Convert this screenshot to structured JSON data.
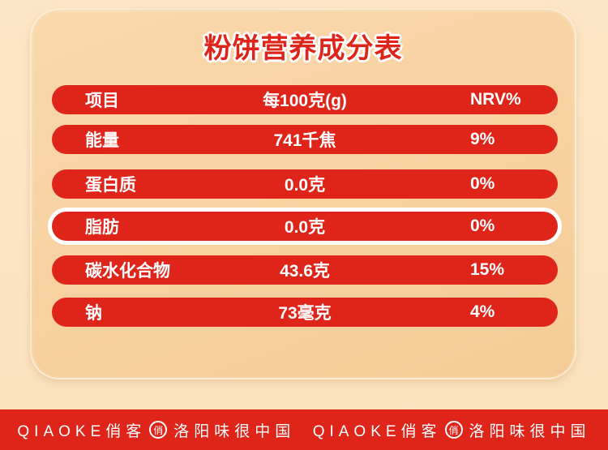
{
  "page": {
    "background_color": "#FBE1BE",
    "card_color": "#F7D1A0",
    "accent_red": "#DF241A",
    "text_on_red": "#FFFFFF"
  },
  "title": "粉饼营养成分表",
  "table": {
    "header": {
      "label": "项目",
      "value": "每100克(g)",
      "nrv": "NRV%"
    },
    "rows": [
      {
        "label": "能量",
        "value": "741千焦",
        "nrv": "9%",
        "highlighted": false
      },
      {
        "label": "蛋白质",
        "value": "0.0克",
        "nrv": "0%",
        "highlighted": false
      },
      {
        "label": "脂肪",
        "value": "0.0克",
        "nrv": "0%",
        "highlighted": true
      },
      {
        "label": "碳水化合物",
        "value": "43.6克",
        "nrv": "15%",
        "highlighted": false
      },
      {
        "label": "钠",
        "value": "73毫克",
        "nrv": "4%",
        "highlighted": false
      }
    ]
  },
  "footer": {
    "groups": [
      {
        "brand": "QIAOKE俏客",
        "seal": "俏",
        "slogan": "洛阳味很中国"
      },
      {
        "brand": "QIAOKE俏客",
        "seal": "俏",
        "slogan": "洛阳味很中国"
      }
    ]
  }
}
